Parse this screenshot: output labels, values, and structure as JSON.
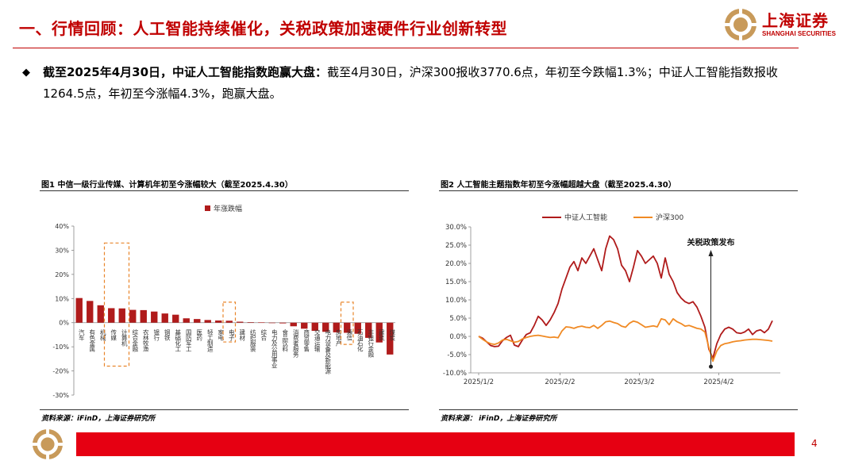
{
  "header": {
    "title": "一、行情回顾：人工智能持续催化，关税政策加速硬件行业创新转型",
    "logo_cn": "上海证券",
    "logo_en": "SHANGHAI SECURITIES"
  },
  "bullet": {
    "mark": "◆",
    "bold": "截至2025年4月30日，中证人工智能指数跑赢大盘：",
    "text": "截至4月30日，沪深300报收3770.6点，年初至今跌幅1.3%；中证人工智能指数报收1264.5点，年初至今涨幅4.3%，跑赢大盘。"
  },
  "figure1": {
    "caption": "图1  中信一级行业传媒、计算机年初至今涨幅较大（截至2025.4.30）",
    "source": "资料来源：iFinD，上海证券研究所"
  },
  "figure2": {
    "caption": "图2  人工智能主题指数年初至今涨幅超越大盘（截至2025.4.30）",
    "source": "资料来源： iFinD，上海证券研究所",
    "annotation": "关税政策发布"
  },
  "footer": {
    "page": "4"
  },
  "colors": {
    "brand_red": "#c00000",
    "bar_red": "#b01b1b",
    "line_orange": "#f08a24",
    "footer_red": "#e60012"
  },
  "chart_data": [
    {
      "type": "bar",
      "title": "中信一级行业传媒、计算机年初至今涨幅较大（截至2025.4.30）",
      "legend": [
        "年涨跌幅"
      ],
      "legend_position": "top",
      "categories": [
        "汽车",
        "有色金属",
        "机械",
        "传媒",
        "计算机",
        "综合金融",
        "农林牧渔",
        "银行",
        "钢铁",
        "基础化工",
        "国防军工",
        "医药",
        "轻工制造",
        "家电",
        "电子",
        "建材",
        "纺织服装",
        "综合",
        "电力及公用事业",
        "食品饮料",
        "消费者服务",
        "商贸零售",
        "交通运输",
        "电力设备及新能源",
        "房地产",
        "通信",
        "石油石化",
        "非银行金融",
        "建筑",
        "煤炭"
      ],
      "values": [
        10.2,
        9.0,
        7.2,
        6.0,
        5.9,
        5.3,
        5.2,
        4.6,
        3.8,
        3.3,
        1.8,
        1.5,
        1.1,
        0.9,
        0.8,
        0.4,
        0.2,
        0.1,
        -0.1,
        -0.3,
        -1.5,
        -2.5,
        -3.4,
        -3.8,
        -4.0,
        -4.2,
        -4.6,
        -6.3,
        -8.2,
        -13.2
      ],
      "ylim": [
        -30,
        40
      ],
      "yticks": [
        "40%",
        "30%",
        "20%",
        "10%",
        "0%",
        "-10%",
        "-20%",
        "-30%"
      ],
      "highlighted": [
        "传媒",
        "计算机",
        "电子",
        "通信"
      ]
    },
    {
      "type": "line",
      "title": "人工智能主题指数年初至今涨幅超越大盘（截至2025.4.30）",
      "ylim": [
        -10,
        30
      ],
      "yticks": [
        "30.0%",
        "25.0%",
        "20.0%",
        "15.0%",
        "10.0%",
        "5.0%",
        "0.0%",
        "-5.0%",
        "-10.0%"
      ],
      "xticks": [
        "2025/1/2",
        "2025/2/2",
        "2025/3/2",
        "2025/4/2"
      ],
      "legend_position": "top",
      "annotation": {
        "text": "关税政策发布",
        "date": "2025/4/2"
      },
      "series": [
        {
          "name": "中证人工智能",
          "color": "#b01b1b",
          "points": [
            [
              0,
              0.0
            ],
            [
              1,
              -0.5
            ],
            [
              2,
              -1.5
            ],
            [
              3,
              -2.5
            ],
            [
              4,
              -2.8
            ],
            [
              5,
              -2.7
            ],
            [
              6,
              -1.2
            ],
            [
              7,
              -0.3
            ],
            [
              8,
              0.3
            ],
            [
              9,
              -2.4
            ],
            [
              10,
              -2.8
            ],
            [
              11,
              -1.0
            ],
            [
              12,
              0.5
            ],
            [
              13,
              1.0
            ],
            [
              14,
              3.0
            ],
            [
              15,
              5.5
            ],
            [
              16,
              4.5
            ],
            [
              17,
              3.0
            ],
            [
              18,
              4.5
            ],
            [
              19,
              6.5
            ],
            [
              20,
              9.0
            ],
            [
              21,
              13.0
            ],
            [
              22,
              16.0
            ],
            [
              23,
              19.0
            ],
            [
              24,
              20.5
            ],
            [
              25,
              18.0
            ],
            [
              26,
              21.5
            ],
            [
              27,
              20.0
            ],
            [
              28,
              22.0
            ],
            [
              29,
              24.0
            ],
            [
              30,
              21.0
            ],
            [
              31,
              18.0
            ],
            [
              32,
              24.0
            ],
            [
              33,
              27.5
            ],
            [
              34,
              26.5
            ],
            [
              35,
              24.0
            ],
            [
              36,
              19.5
            ],
            [
              37,
              18.0
            ],
            [
              38,
              15.0
            ],
            [
              39,
              19.0
            ],
            [
              40,
              23.5
            ],
            [
              41,
              22.0
            ],
            [
              42,
              20.0
            ],
            [
              43,
              21.0
            ],
            [
              44,
              22.0
            ],
            [
              45,
              20.0
            ],
            [
              46,
              16.0
            ],
            [
              47,
              21.5
            ],
            [
              48,
              17.0
            ],
            [
              49,
              15.0
            ],
            [
              50,
              12.0
            ],
            [
              51,
              10.5
            ],
            [
              52,
              9.5
            ],
            [
              53,
              9.0
            ],
            [
              54,
              9.5
            ],
            [
              55,
              8.0
            ],
            [
              56,
              5.5
            ],
            [
              57,
              2.5
            ],
            [
              58,
              -3.5
            ],
            [
              59,
              -6.0
            ],
            [
              60,
              -2.0
            ],
            [
              61,
              0.5
            ],
            [
              62,
              2.0
            ],
            [
              63,
              2.5
            ],
            [
              64,
              2.0
            ],
            [
              65,
              1.0
            ],
            [
              66,
              0.8
            ],
            [
              67,
              1.2
            ],
            [
              68,
              2.0
            ],
            [
              69,
              0.5
            ],
            [
              70,
              1.5
            ],
            [
              71,
              1.8
            ],
            [
              72,
              1.0
            ],
            [
              73,
              2.0
            ],
            [
              74,
              4.3
            ]
          ]
        },
        {
          "name": "沪深300",
          "color": "#f08a24",
          "points": [
            [
              0,
              0.0
            ],
            [
              1,
              -0.8
            ],
            [
              2,
              -1.5
            ],
            [
              3,
              -2.0
            ],
            [
              4,
              -2.2
            ],
            [
              5,
              -1.8
            ],
            [
              6,
              -1.0
            ],
            [
              7,
              -0.8
            ],
            [
              8,
              -1.2
            ],
            [
              9,
              -1.6
            ],
            [
              10,
              -1.4
            ],
            [
              11,
              -0.7
            ],
            [
              12,
              -0.3
            ],
            [
              13,
              0.0
            ],
            [
              14,
              0.2
            ],
            [
              15,
              0.3
            ],
            [
              16,
              0.1
            ],
            [
              17,
              -0.1
            ],
            [
              18,
              -0.3
            ],
            [
              19,
              -0.2
            ],
            [
              20,
              -0.4
            ],
            [
              21,
              1.5
            ],
            [
              22,
              2.6
            ],
            [
              23,
              2.5
            ],
            [
              24,
              2.2
            ],
            [
              25,
              2.6
            ],
            [
              26,
              2.8
            ],
            [
              27,
              2.5
            ],
            [
              28,
              2.4
            ],
            [
              29,
              3.0
            ],
            [
              30,
              2.2
            ],
            [
              31,
              3.0
            ],
            [
              32,
              4.0
            ],
            [
              33,
              4.2
            ],
            [
              34,
              3.8
            ],
            [
              35,
              3.5
            ],
            [
              36,
              2.8
            ],
            [
              37,
              2.5
            ],
            [
              38,
              3.6
            ],
            [
              39,
              4.2
            ],
            [
              40,
              3.9
            ],
            [
              41,
              3.2
            ],
            [
              42,
              2.5
            ],
            [
              43,
              2.7
            ],
            [
              44,
              2.9
            ],
            [
              45,
              2.6
            ],
            [
              46,
              4.8
            ],
            [
              47,
              4.5
            ],
            [
              48,
              3.2
            ],
            [
              49,
              4.8
            ],
            [
              50,
              4.0
            ],
            [
              51,
              3.5
            ],
            [
              52,
              2.8
            ],
            [
              53,
              3.0
            ],
            [
              54,
              2.6
            ],
            [
              55,
              2.2
            ],
            [
              56,
              2.0
            ],
            [
              57,
              1.2
            ],
            [
              58,
              -3.0
            ],
            [
              59,
              -6.8
            ],
            [
              60,
              -4.0
            ],
            [
              61,
              -2.5
            ],
            [
              62,
              -2.0
            ],
            [
              63,
              -1.8
            ],
            [
              64,
              -1.5
            ],
            [
              65,
              -1.3
            ],
            [
              66,
              -1.2
            ],
            [
              67,
              -1.0
            ],
            [
              68,
              -0.9
            ],
            [
              69,
              -0.8
            ],
            [
              70,
              -0.8
            ],
            [
              71,
              -0.9
            ],
            [
              72,
              -1.0
            ],
            [
              73,
              -1.1
            ],
            [
              74,
              -1.3
            ]
          ]
        }
      ]
    }
  ]
}
